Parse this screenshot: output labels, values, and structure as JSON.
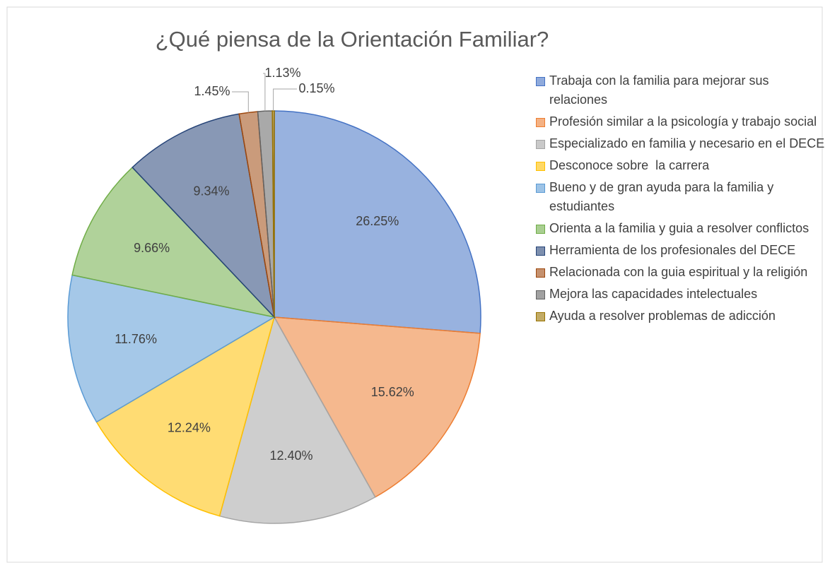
{
  "chart_data": {
    "type": "pie",
    "title": "¿Qué piensa de la Orientación Familiar?",
    "categories": [
      "Trabaja con la familia para mejorar sus relaciones",
      "Profesión similar a la psicología y trabajo social",
      "Especializado en familia y necesario en el DECE",
      "Desconoce sobre  la carrera",
      "Bueno y de gran ayuda para la familia y estudiantes",
      "Orienta a la familia y guia a resolver conflictos",
      "Herramienta de los profesionales del DECE",
      "Relacionada con la guia espiritual y la religión",
      "Mejora las capacidades intelectuales",
      "Ayuda a resolver problemas de adicción"
    ],
    "values": [
      26.25,
      15.62,
      12.4,
      12.24,
      11.76,
      9.66,
      9.34,
      1.45,
      1.13,
      0.15
    ],
    "value_labels": [
      "26.25%",
      "15.62%",
      "12.40%",
      "12.24%",
      "11.76%",
      "9.66%",
      "9.34%",
      "1.45%",
      "1.13%",
      "0.15%"
    ],
    "colors": [
      "#4472c4",
      "#ed7d31",
      "#a5a5a5",
      "#ffc000",
      "#5b9bd5",
      "#70ad47",
      "#264478",
      "#9e480e",
      "#636363",
      "#997300"
    ],
    "legend": "right"
  }
}
